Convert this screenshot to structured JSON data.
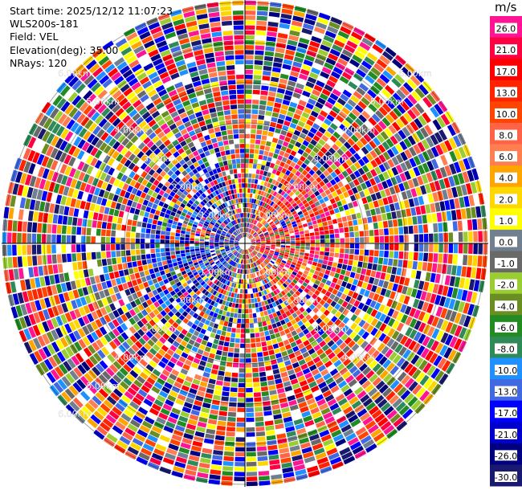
{
  "header": {
    "start_time": "Start time: 2025/12/12 11:07:23",
    "instrument": "WLS200s-181",
    "field": "Field: VEL",
    "elevation": "Elevation(deg): 35.00",
    "nrays": "NRays: 120"
  },
  "range_ring_labels": [
    "1.00km",
    "2.00km",
    "3.00km",
    "4.00km",
    "5.00km",
    "6.00km"
  ],
  "range_labels_nw": [
    "6.00km",
    "5.00km",
    "4.00km",
    "3.00km",
    "2.00km",
    "1.00km"
  ],
  "range_labels_ne": [
    "1.00km",
    "2.00km",
    "3.00km",
    "4.00km",
    "5.00km",
    "6.00km"
  ],
  "range_labels_sw": [
    "1.00km",
    "2.00km",
    "3.00km",
    "4.00km",
    "5.00km",
    "6.00km"
  ],
  "range_labels_se": [
    "1.00km",
    "2.00km",
    "3.00km",
    "4.00km"
  ],
  "colorbar": {
    "unit": "m/s",
    "ticks": [
      "26.0",
      "21.0",
      "17.0",
      "13.0",
      "10.0",
      "8.0",
      "6.0",
      "4.0",
      "2.0",
      "1.0",
      "0.0",
      "-1.0",
      "-2.0",
      "-4.0",
      "-6.0",
      "-8.0",
      "-10.0",
      "-13.0",
      "-17.0",
      "-21.0",
      "-26.0",
      "-30.0"
    ],
    "colors": [
      "#ff1493",
      "#ff0040",
      "#ff0000",
      "#ff2400",
      "#ff4500",
      "#ff6347",
      "#ff7f50",
      "#ffa500",
      "#ffd700",
      "#ffff00",
      "#708090",
      "#696969",
      "#9acd32",
      "#6b8e23",
      "#228b22",
      "#2e8b57",
      "#1e90ff",
      "#4169e1",
      "#0000ff",
      "#0000cd",
      "#000080",
      "#191970"
    ]
  }
}
